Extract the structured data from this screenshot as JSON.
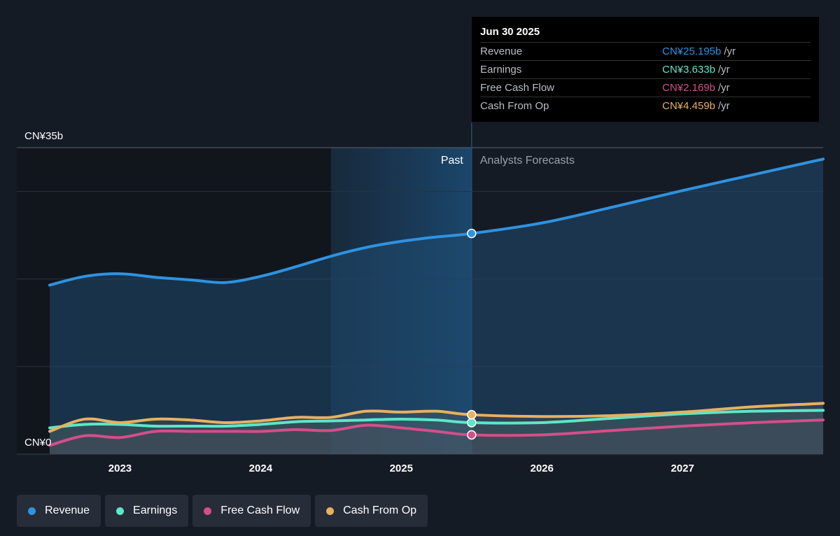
{
  "tooltip": {
    "date": "Jun 30 2025",
    "rows": [
      {
        "label": "Revenue",
        "value": "CN¥25.195b",
        "unit": "/yr",
        "color": "#2e93e0"
      },
      {
        "label": "Earnings",
        "value": "CN¥3.633b",
        "unit": "/yr",
        "color": "#5ee6c8"
      },
      {
        "label": "Free Cash Flow",
        "value": "CN¥2.169b",
        "unit": "/yr",
        "color": "#d44e8a"
      },
      {
        "label": "Cash From Op",
        "value": "CN¥4.459b",
        "unit": "/yr",
        "color": "#e8b060"
      }
    ]
  },
  "legend": [
    {
      "label": "Revenue",
      "color": "#2e93e0"
    },
    {
      "label": "Earnings",
      "color": "#5ee6c8"
    },
    {
      "label": "Free Cash Flow",
      "color": "#d44e8a"
    },
    {
      "label": "Cash From Op",
      "color": "#e8b060"
    }
  ],
  "chart_data": {
    "type": "line",
    "ylim": [
      0,
      35
    ],
    "y_tick_labels": [
      "CN¥35b",
      "CN¥0"
    ],
    "x_tick_labels": [
      "2023",
      "2024",
      "2025",
      "2026",
      "2027"
    ],
    "x_ticks": [
      2023.0,
      2024.0,
      2025.0,
      2026.0,
      2027.0
    ],
    "xlim": [
      2022.25,
      2028.0
    ],
    "past_label": "Past",
    "forecast_label": "Analysts Forecasts",
    "past_shade_start": 2024.5,
    "divider_x": 2025.5,
    "grid": true,
    "series": [
      {
        "name": "Revenue",
        "color": "#2e93e0",
        "x": [
          2022.5,
          2022.75,
          2023.0,
          2023.25,
          2023.5,
          2023.75,
          2024.0,
          2024.25,
          2024.5,
          2024.75,
          2025.0,
          2025.25,
          2025.5,
          2026.0,
          2026.5,
          2027.0,
          2027.5,
          2028.0
        ],
        "y": [
          19.3,
          20.3,
          20.6,
          20.2,
          19.9,
          19.6,
          20.3,
          21.4,
          22.6,
          23.6,
          24.3,
          24.8,
          25.2,
          26.4,
          28.2,
          30.1,
          31.9,
          33.7
        ]
      },
      {
        "name": "Earnings",
        "color": "#5ee6c8",
        "x": [
          2022.5,
          2022.75,
          2023.0,
          2023.25,
          2023.5,
          2023.75,
          2024.0,
          2024.25,
          2024.5,
          2024.75,
          2025.0,
          2025.25,
          2025.5,
          2026.0,
          2026.5,
          2027.0,
          2027.5,
          2028.0
        ],
        "y": [
          3.0,
          3.4,
          3.4,
          3.2,
          3.2,
          3.2,
          3.4,
          3.7,
          3.8,
          3.9,
          4.0,
          3.9,
          3.6,
          3.6,
          4.1,
          4.6,
          4.9,
          5.0
        ]
      },
      {
        "name": "Free Cash Flow",
        "color": "#d44e8a",
        "x": [
          2022.5,
          2022.75,
          2023.0,
          2023.25,
          2023.5,
          2023.75,
          2024.0,
          2024.25,
          2024.5,
          2024.75,
          2025.0,
          2025.25,
          2025.5,
          2026.0,
          2026.5,
          2027.0,
          2027.5,
          2028.0
        ],
        "y": [
          1.0,
          2.1,
          1.9,
          2.6,
          2.6,
          2.6,
          2.6,
          2.8,
          2.7,
          3.3,
          3.0,
          2.6,
          2.2,
          2.2,
          2.7,
          3.2,
          3.6,
          3.9
        ]
      },
      {
        "name": "Cash From Op",
        "color": "#e8b060",
        "x": [
          2022.5,
          2022.75,
          2023.0,
          2023.25,
          2023.5,
          2023.75,
          2024.0,
          2024.25,
          2024.5,
          2024.75,
          2025.0,
          2025.25,
          2025.5,
          2026.0,
          2026.5,
          2027.0,
          2027.5,
          2028.0
        ],
        "y": [
          2.6,
          4.0,
          3.6,
          4.0,
          3.9,
          3.6,
          3.8,
          4.2,
          4.2,
          4.9,
          4.8,
          4.9,
          4.5,
          4.3,
          4.4,
          4.8,
          5.4,
          5.8
        ]
      }
    ]
  }
}
